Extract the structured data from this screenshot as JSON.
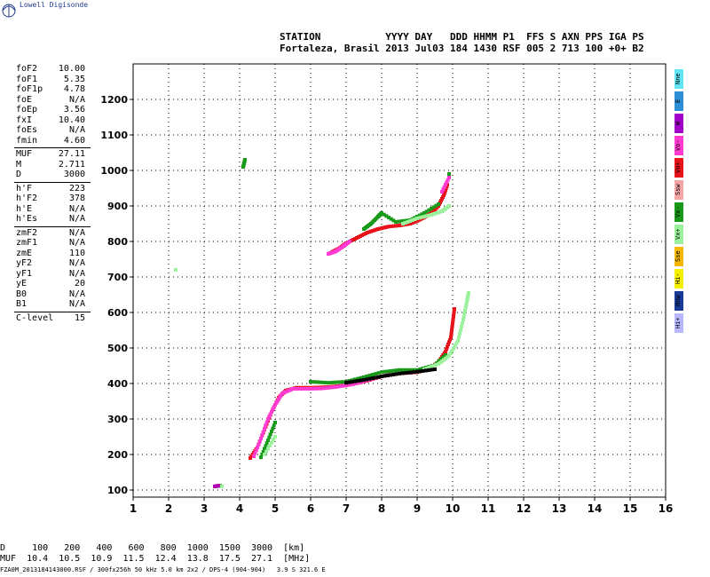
{
  "app": {
    "brand": "Lowell Digisonde"
  },
  "header": {
    "line1": "STATION           YYYY DAY   DDD HHMM P1  FFS S AXN PPS IGA PS",
    "line2": "Fortaleza, Brasil 2013 Jul03 184 1430 RSF 005 2 713 100 +0+ B2"
  },
  "params": [
    {
      "label": "foF2",
      "value": "10.00"
    },
    {
      "label": "foF1",
      "value": "5.35"
    },
    {
      "label": "foF1p",
      "value": "4.78"
    },
    {
      "label": "foE",
      "value": "N/A"
    },
    {
      "label": "foEp",
      "value": "3.56"
    },
    {
      "label": "fxI",
      "value": "10.40"
    },
    {
      "label": "foEs",
      "value": "N/A"
    },
    {
      "label": "fmin",
      "value": "4.60"
    },
    {
      "label": "MUF",
      "value": "27.11"
    },
    {
      "label": "M",
      "value": "2.711"
    },
    {
      "label": "D",
      "value": "3000"
    },
    {
      "label": "h'F",
      "value": "223"
    },
    {
      "label": "h'F2",
      "value": "378"
    },
    {
      "label": "h'E",
      "value": "N/A"
    },
    {
      "label": "h'Es",
      "value": "N/A"
    },
    {
      "label": "zmF2",
      "value": "N/A"
    },
    {
      "label": "zmF1",
      "value": "N/A"
    },
    {
      "label": "zmE",
      "value": "110"
    },
    {
      "label": "yF2",
      "value": "N/A"
    },
    {
      "label": "yF1",
      "value": "N/A"
    },
    {
      "label": "yE",
      "value": "20"
    },
    {
      "label": "B0",
      "value": "N/A"
    },
    {
      "label": "B1",
      "value": "N/A"
    },
    {
      "label": "C-level",
      "value": "15"
    }
  ],
  "legend": [
    {
      "label": "Nne",
      "color": "#5fe6f2"
    },
    {
      "label": "E",
      "color": "#2f8fd6"
    },
    {
      "label": "W",
      "color": "#a000c8"
    },
    {
      "label": "Vo-",
      "color": "#ff3ad0"
    },
    {
      "label": "Vo+",
      "color": "#e8141c"
    },
    {
      "label": "Ssw",
      "color": "#f4a6a6"
    },
    {
      "label": "Vx-",
      "color": "#1a9a1a"
    },
    {
      "label": "Vx+",
      "color": "#9cf29c"
    },
    {
      "label": "Sse",
      "color": "#f5b800"
    },
    {
      "label": "Hi-",
      "color": "#f4f000"
    },
    {
      "label": "Nnw",
      "color": "#1a3a9a"
    },
    {
      "label": "Hi+",
      "color": "#b8b8ff"
    }
  ],
  "bottom": {
    "d_row": "D     100   200   400   600   800  1000  1500  3000  [km]",
    "muf_row": "MUF  10.4  10.5  10.9  11.5  12.4  13.8  17.5  27.1  [MHz]",
    "file": "FZA0M_2013184143000.RSF / 300fx256h 50 kHz 5.0 km 2x2 / DPS-4 (904-904)   3.9 S 321.6 E"
  },
  "chart_data": {
    "type": "scatter",
    "xlim": [
      1,
      16
    ],
    "ylim": [
      80,
      1300
    ],
    "x_ticks": [
      1,
      2,
      3,
      4,
      5,
      6,
      7,
      8,
      9,
      10,
      11,
      12,
      13,
      14,
      15,
      16
    ],
    "y_ticks": [
      100,
      200,
      300,
      400,
      500,
      600,
      700,
      800,
      900,
      1000,
      1100,
      1200
    ],
    "grid": true,
    "series": [
      {
        "color": "#e8141c",
        "points": [
          [
            4.3,
            190
          ],
          [
            4.5,
            220
          ],
          [
            4.7,
            270
          ],
          [
            4.9,
            320
          ],
          [
            5.1,
            360
          ],
          [
            5.3,
            380
          ],
          [
            5.6,
            388
          ],
          [
            6.0,
            388
          ],
          [
            6.5,
            390
          ],
          [
            7.0,
            395
          ],
          [
            7.5,
            405
          ],
          [
            8.0,
            420
          ],
          [
            8.5,
            428
          ],
          [
            9.0,
            432
          ],
          [
            9.3,
            440
          ],
          [
            9.6,
            460
          ],
          [
            9.8,
            490
          ],
          [
            9.95,
            530
          ],
          [
            10.0,
            570
          ],
          [
            10.05,
            610
          ]
        ]
      },
      {
        "color": "#ff3ad0",
        "points": [
          [
            4.4,
            195
          ],
          [
            4.6,
            245
          ],
          [
            4.8,
            300
          ],
          [
            5.0,
            340
          ],
          [
            5.2,
            372
          ],
          [
            5.5,
            385
          ],
          [
            5.9,
            385
          ],
          [
            6.3,
            386
          ],
          [
            6.7,
            390
          ],
          [
            7.2,
            398
          ],
          [
            7.7,
            412
          ],
          [
            8.2,
            425
          ],
          [
            8.8,
            430
          ]
        ]
      },
      {
        "color": "#1a9a1a",
        "points": [
          [
            3.45,
            112
          ],
          [
            4.6,
            192
          ],
          [
            4.8,
            240
          ],
          [
            5.0,
            290
          ],
          [
            6.0,
            405
          ],
          [
            6.5,
            402
          ],
          [
            7.0,
            405
          ],
          [
            7.5,
            418
          ],
          [
            8.0,
            432
          ],
          [
            8.5,
            438
          ],
          [
            9.0,
            438
          ],
          [
            9.5,
            452
          ],
          [
            9.8,
            480
          ]
        ]
      },
      {
        "color": "#9cf29c",
        "points": [
          [
            4.7,
            200
          ],
          [
            5.0,
            250
          ],
          [
            9.2,
            440
          ],
          [
            9.6,
            455
          ],
          [
            9.9,
            478
          ],
          [
            10.15,
            520
          ],
          [
            10.3,
            580
          ],
          [
            10.4,
            630
          ],
          [
            10.45,
            655
          ]
        ]
      },
      {
        "color": "#000000",
        "points": [
          [
            7.0,
            402
          ],
          [
            7.5,
            410
          ],
          [
            8.0,
            420
          ],
          [
            8.5,
            428
          ],
          [
            9.0,
            433
          ],
          [
            9.5,
            440
          ]
        ]
      },
      {
        "color": "#e8141c",
        "points": [
          [
            6.6,
            770
          ],
          [
            6.8,
            780
          ],
          [
            7.0,
            795
          ],
          [
            7.3,
            810
          ],
          [
            7.6,
            825
          ],
          [
            7.9,
            835
          ],
          [
            8.2,
            842
          ],
          [
            8.5,
            845
          ],
          [
            8.8,
            850
          ],
          [
            9.0,
            858
          ],
          [
            9.2,
            868
          ],
          [
            9.4,
            880
          ],
          [
            9.6,
            900
          ],
          [
            9.75,
            930
          ],
          [
            9.85,
            960
          ]
        ]
      },
      {
        "color": "#ff3ad0",
        "points": [
          [
            6.5,
            765
          ],
          [
            6.7,
            772
          ],
          [
            6.9,
            785
          ],
          [
            7.1,
            800
          ],
          [
            9.7,
            940
          ],
          [
            9.9,
            980
          ]
        ]
      },
      {
        "color": "#1a9a1a",
        "points": [
          [
            7.5,
            835
          ],
          [
            7.7,
            850
          ],
          [
            7.9,
            870
          ],
          [
            8.0,
            880
          ],
          [
            8.4,
            855
          ],
          [
            8.8,
            860
          ],
          [
            9.2,
            880
          ],
          [
            9.6,
            905
          ],
          [
            9.9,
            990
          ],
          [
            4.1,
            1010
          ],
          [
            4.15,
            1030
          ]
        ]
      },
      {
        "color": "#9cf29c",
        "points": [
          [
            8.6,
            850
          ],
          [
            9.0,
            865
          ],
          [
            9.4,
            875
          ],
          [
            9.7,
            885
          ],
          [
            9.9,
            900
          ],
          [
            2.2,
            720
          ],
          [
            3.5,
            110
          ]
        ]
      },
      {
        "color": "#b000b0",
        "points": [
          [
            3.3,
            110
          ],
          [
            3.4,
            112
          ]
        ]
      }
    ]
  }
}
